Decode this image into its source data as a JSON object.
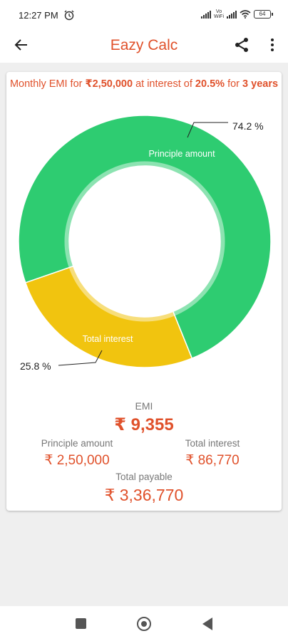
{
  "status_bar": {
    "time": "12:27 PM",
    "network_label": "Vo\nWiFi",
    "battery": "64"
  },
  "app_bar": {
    "title": "Eazy Calc",
    "back_icon": "arrow-left-icon",
    "share_icon": "share-icon",
    "more_icon": "more-vert-icon"
  },
  "headline": {
    "prefix": "Monthly EMI for ",
    "amount": "₹2,50,000",
    "middle": " at interest of ",
    "rate": "20.5%",
    "for_word": " for ",
    "duration": "3 years"
  },
  "chart_data": {
    "type": "pie",
    "categories": [
      "Principle amount",
      "Total interest"
    ],
    "values": [
      74.2,
      25.8
    ],
    "labels": [
      "74.2 %",
      "25.8 %"
    ],
    "colors": [
      "#2ecc71",
      "#f1c40f"
    ],
    "hole": "donut"
  },
  "results": {
    "emi_label": "EMI",
    "emi_value": "₹ 9,355",
    "principal_label": "Principle amount",
    "principal_value": "₹ 2,50,000",
    "interest_label": "Total interest",
    "interest_value": "₹ 86,770",
    "total_label": "Total payable",
    "total_value": "₹ 3,36,770"
  },
  "colors": {
    "accent": "#e0512b",
    "principal": "#2ecc71",
    "interest": "#f1c40f"
  },
  "nav_bar": {
    "recent_icon": "square-icon",
    "home_icon": "circle-icon",
    "back_icon": "triangle-back-icon"
  }
}
